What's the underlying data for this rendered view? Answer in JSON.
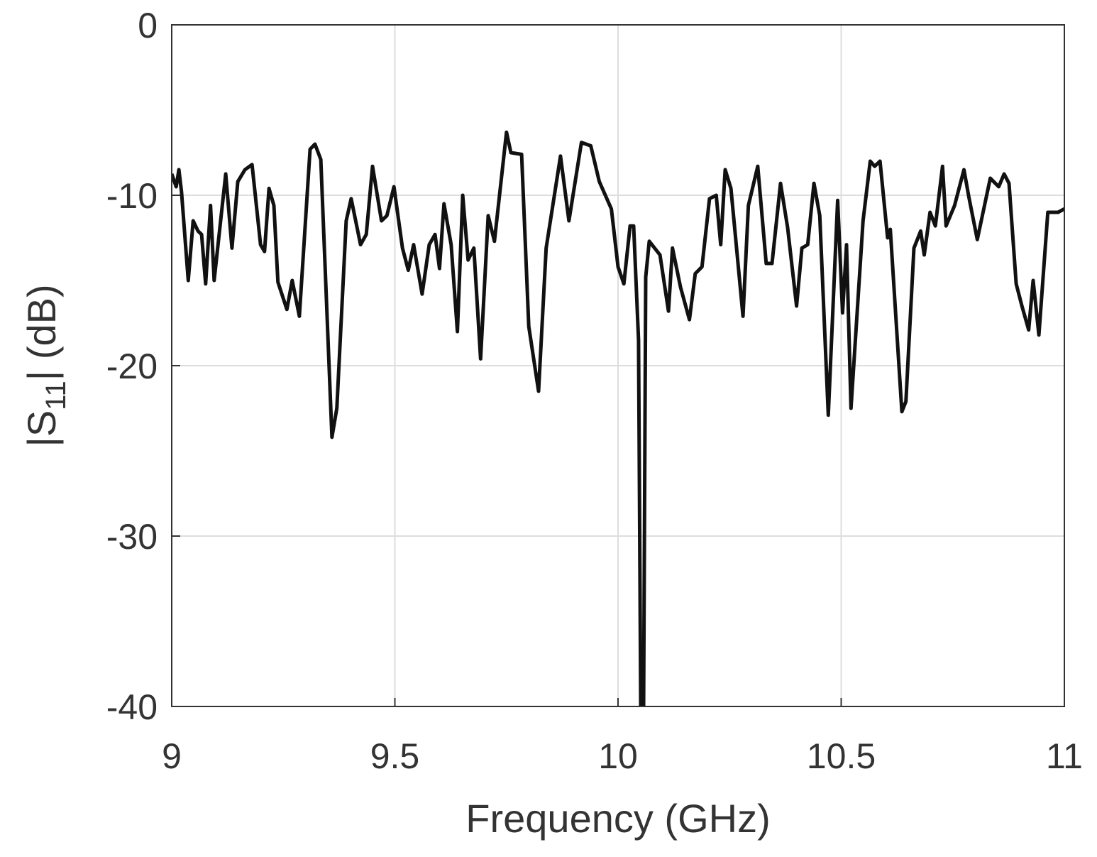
{
  "chart_data": {
    "type": "line",
    "xlabel": "Frequency (GHz)",
    "ylabel": [
      "|S",
      "11",
      "| (dB)"
    ],
    "xlim": [
      9,
      11
    ],
    "xticks": [
      9,
      9.5,
      10,
      10.5,
      11
    ],
    "ylim": [
      -40,
      0
    ],
    "yticks": [
      0,
      -10,
      -20,
      -30,
      -40
    ],
    "grid": true,
    "series": [
      {
        "color": "#111111",
        "x": [
          9.0,
          9.01,
          9.016,
          9.022,
          9.037,
          9.048,
          9.059,
          9.067,
          9.076,
          9.087,
          9.095,
          9.121,
          9.135,
          9.148,
          9.164,
          9.18,
          9.199,
          9.208,
          9.218,
          9.229,
          9.238,
          9.258,
          9.27,
          9.286,
          9.31,
          9.321,
          9.334,
          9.359,
          9.37,
          9.391,
          9.402,
          9.423,
          9.436,
          9.45,
          9.47,
          9.482,
          9.498,
          9.517,
          9.53,
          9.542,
          9.561,
          9.577,
          9.59,
          9.6,
          9.61,
          9.626,
          9.64,
          9.652,
          9.664,
          9.677,
          9.692,
          9.709,
          9.723,
          9.75,
          9.76,
          9.784,
          9.8,
          9.822,
          9.839,
          9.871,
          9.89,
          9.918,
          9.939,
          9.958,
          9.985,
          10.0,
          10.013,
          10.027,
          10.035,
          10.046,
          10.051,
          10.057,
          10.062,
          10.07,
          10.094,
          10.113,
          10.122,
          10.14,
          10.16,
          10.173,
          10.188,
          10.205,
          10.22,
          10.23,
          10.24,
          10.253,
          10.28,
          10.292,
          10.313,
          10.332,
          10.345,
          10.364,
          10.38,
          10.4,
          10.412,
          10.425,
          10.439,
          10.452,
          10.471,
          10.492,
          10.503,
          10.512,
          10.522,
          10.549,
          10.565,
          10.575,
          10.587,
          10.604,
          10.61,
          10.636,
          10.645,
          10.663,
          10.678,
          10.686,
          10.699,
          10.711,
          10.727,
          10.735,
          10.754,
          10.775,
          10.786,
          10.805,
          10.834,
          10.853,
          10.865,
          10.876,
          10.892,
          10.905,
          10.92,
          10.93,
          10.943,
          10.963,
          10.986,
          11.0
        ],
        "values": [
          -8.75,
          -9.5,
          -8.5,
          -9.8,
          -15,
          -11.5,
          -12.1,
          -12.3,
          -15.2,
          -10.6,
          -15,
          -8.75,
          -13.1,
          -9.2,
          -8.5,
          -8.2,
          -12.9,
          -13.3,
          -9.6,
          -10.6,
          -15.1,
          -16.7,
          -15,
          -17.1,
          -7.3,
          -7.0,
          -7.9,
          -24.2,
          -22.5,
          -11.5,
          -10.2,
          -12.9,
          -12.3,
          -8.3,
          -11.5,
          -11.2,
          -9.5,
          -13.1,
          -14.4,
          -12.9,
          -15.8,
          -12.9,
          -12.3,
          -14.3,
          -10.5,
          -12.9,
          -18,
          -10,
          -13.8,
          -13.1,
          -19.6,
          -11.2,
          -12.7,
          -6.3,
          -7.5,
          -7.6,
          -17.7,
          -21.5,
          -13.1,
          -7.7,
          -11.5,
          -6.9,
          -7.1,
          -9.2,
          -10.8,
          -14.2,
          -15.2,
          -11.8,
          -11.8,
          -18.5,
          -41,
          -41,
          -14.8,
          -12.7,
          -13.5,
          -16.8,
          -13.1,
          -15.4,
          -17.3,
          -14.6,
          -14.2,
          -10.2,
          -10,
          -12.9,
          -8.5,
          -9.6,
          -17.1,
          -10.6,
          -8.3,
          -14,
          -14,
          -9.3,
          -11.9,
          -16.5,
          -13.1,
          -12.9,
          -9.3,
          -11.2,
          -22.9,
          -10.3,
          -16.9,
          -12.9,
          -22.5,
          -11.5,
          -8,
          -8.3,
          -8,
          -12.5,
          -12,
          -22.7,
          -22.1,
          -13.1,
          -12.1,
          -13.5,
          -11,
          -11.8,
          -8.3,
          -11.8,
          -10.6,
          -8.5,
          -10.1,
          -12.6,
          -9,
          -9.5,
          -8.75,
          -9.3,
          -15.2,
          -16.5,
          -17.9,
          -15,
          -18.2,
          -11,
          -11,
          -10.8
        ]
      }
    ]
  }
}
